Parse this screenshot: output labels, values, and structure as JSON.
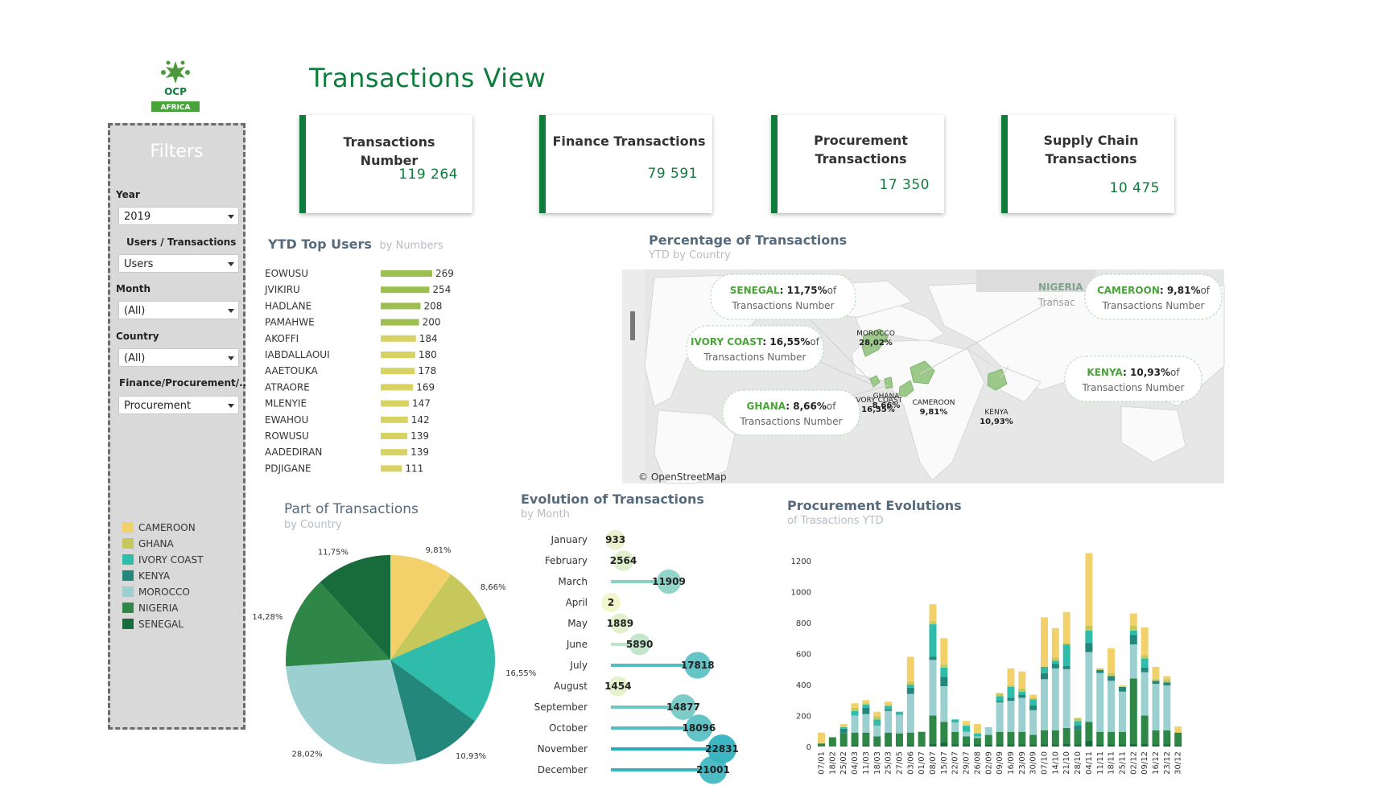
{
  "logo": {
    "text": "OCP",
    "badge": "AFRICA"
  },
  "header": {
    "title": "Transactions View"
  },
  "filters": {
    "title": "Filters",
    "year": {
      "label": "Year",
      "value": "2019"
    },
    "users_transactions": {
      "label": "Users / Transactions",
      "value": "Users"
    },
    "month": {
      "label": "Month",
      "value": "(All)"
    },
    "country": {
      "label": "Country",
      "value": "(All)"
    },
    "type": {
      "label": "Finance/Procurement/..",
      "value": "Procurement"
    }
  },
  "legend": [
    {
      "name": "CAMEROON",
      "color": "#f2d16b"
    },
    {
      "name": "GHANA",
      "color": "#c6c85c"
    },
    {
      "name": "IVORY COAST",
      "color": "#2fbcaa"
    },
    {
      "name": "KENYA",
      "color": "#23877b"
    },
    {
      "name": "MOROCCO",
      "color": "#9ccfd0"
    },
    {
      "name": "NIGERIA",
      "color": "#2e8746"
    },
    {
      "name": "SENEGAL",
      "color": "#186c3b"
    }
  ],
  "kpis": [
    {
      "title": "Transactions Number",
      "value": "119 264"
    },
    {
      "title": "Finance Transactions",
      "value": "79 591"
    },
    {
      "title": "Procurement Transactions",
      "value": "17 350"
    },
    {
      "title": "Supply Chain Transactions",
      "value": "10 475"
    }
  ],
  "top_users": {
    "title": "YTD Top Users",
    "subtitle": "by Numbers",
    "chart_data": {
      "type": "bar",
      "orientation": "horizontal",
      "categories": [
        "EOWUSU",
        "JVIKIRU",
        "HADLANE",
        "PAMAHWE",
        "AKOFFI",
        "IABDALLAOUI",
        "AAETOUKA",
        "ATRAORE",
        "MLENYIE",
        "EWAHOU",
        "ROWUSU",
        "AADEDIRAN",
        "PDJIGANE"
      ],
      "values": [
        269,
        254,
        208,
        200,
        184,
        180,
        178,
        169,
        147,
        142,
        139,
        139,
        111
      ],
      "color_range": [
        "#9cbf4f",
        "#d8d164"
      ]
    }
  },
  "map": {
    "title": "Percentage of Transactions",
    "subtitle": "YTD by Country",
    "attribution": "© OpenStreetMap",
    "points": [
      {
        "name": "MOROCCO",
        "pct": "28,02%"
      },
      {
        "name": "IVORY COAST",
        "pct": "16,55%"
      },
      {
        "name": "GHANA",
        "pct": "8,66%"
      },
      {
        "name": "CAMEROON",
        "pct": "9,81%"
      },
      {
        "name": "KENYA",
        "pct": "10,93%"
      }
    ],
    "callouts": [
      {
        "country": "SENEGAL",
        "pct": "11,75%",
        "of": "of",
        "text": "Transactions Number"
      },
      {
        "country": "IVORY COAST",
        "pct": "16,55%",
        "of": "of",
        "text": "Transactions Number"
      },
      {
        "country": "GHANA",
        "pct": "8,66%",
        "of": "of",
        "text": "Transactions Number"
      },
      {
        "country": "CAMEROON",
        "pct": "9,81%",
        "of": "of",
        "text": "Transactions Number"
      },
      {
        "country": "KENYA",
        "pct": "10,93%",
        "of": "of",
        "text": "Transactions Number"
      }
    ],
    "nigeria_partial": {
      "name": "NIGERIA",
      "text": "Transac"
    }
  },
  "part": {
    "title": "Part of Transactions",
    "subtitle": "by Country",
    "chart_data": {
      "type": "pie",
      "categories": [
        "CAMEROON",
        "GHANA",
        "IVORY COAST",
        "KENYA",
        "MOROCCO",
        "NIGERIA",
        "SENEGAL"
      ],
      "values": [
        9.81,
        8.66,
        16.55,
        10.93,
        28.02,
        14.28,
        11.75
      ],
      "labels": [
        "9,81%",
        "8,66%",
        "16,55%",
        "10,93%",
        "28,02%",
        "14,28%",
        "11,75%"
      ],
      "colors": [
        "#f2d16b",
        "#c6c85c",
        "#2fbcaa",
        "#23877b",
        "#9ccfd0",
        "#2e8746",
        "#186c3b"
      ]
    }
  },
  "evolution": {
    "title": "Evolution of Transactions",
    "subtitle": "by Month",
    "chart_data": {
      "type": "lollipop",
      "categories": [
        "January",
        "February",
        "March",
        "April",
        "May",
        "June",
        "July",
        "August",
        "September",
        "October",
        "November",
        "December"
      ],
      "values": [
        933,
        2564,
        11909,
        2,
        1889,
        5890,
        17818,
        1454,
        14877,
        18096,
        22831,
        21001
      ],
      "labels": [
        "933",
        "2564",
        "11909",
        "2",
        "1889",
        "5890",
        "17818",
        "1454",
        "14877",
        "18096",
        "22831",
        "21001"
      ]
    }
  },
  "procurement": {
    "title": "Procurement  Evolutions",
    "subtitle": "of Trasactions YTD",
    "chart_data": {
      "type": "bar",
      "stacked": true,
      "ylim": [
        0,
        1300
      ],
      "yticks": [
        0,
        200,
        400,
        600,
        800,
        1000,
        1200
      ],
      "x": [
        "07/01",
        "18/02",
        "25/02",
        "04/03",
        "11/03",
        "18/03",
        "25/03",
        "27/05",
        "03/06",
        "01/07",
        "08/07",
        "15/07",
        "22/07",
        "29/07",
        "26/08",
        "02/09",
        "09/09",
        "16/09",
        "23/09",
        "30/09",
        "07/10",
        "14/10",
        "21/10",
        "28/10",
        "04/11",
        "11/11",
        "18/11",
        "25/11",
        "02/12",
        "09/12",
        "16/12",
        "23/12",
        "30/12"
      ],
      "series": [
        {
          "name": "SENEGAL",
          "values": [
            0,
            0,
            5,
            10,
            10,
            5,
            10,
            5,
            10,
            5,
            20,
            30,
            15,
            15,
            15,
            15,
            15,
            15,
            15,
            15,
            15,
            15,
            20,
            15,
            40,
            15,
            15,
            15,
            20,
            20,
            15,
            15,
            10
          ]
        },
        {
          "name": "NIGERIA",
          "values": [
            20,
            60,
            80,
            80,
            80,
            60,
            80,
            80,
            80,
            90,
            180,
            130,
            80,
            50,
            40,
            60,
            80,
            80,
            80,
            60,
            90,
            90,
            100,
            90,
            120,
            80,
            80,
            80,
            420,
            180,
            90,
            90,
            80
          ]
        },
        {
          "name": "MOROCCO",
          "values": [
            0,
            0,
            0,
            110,
            120,
            70,
            140,
            120,
            250,
            0,
            360,
            230,
            60,
            30,
            10,
            50,
            190,
            200,
            220,
            160,
            330,
            400,
            380,
            0,
            450,
            380,
            330,
            260,
            220,
            280,
            300,
            290,
            0
          ]
        },
        {
          "name": "KENYA",
          "values": [
            0,
            0,
            30,
            0,
            40,
            0,
            10,
            0,
            40,
            0,
            20,
            60,
            0,
            0,
            0,
            0,
            10,
            20,
            20,
            30,
            40,
            30,
            20,
            30,
            60,
            20,
            30,
            30,
            60,
            30,
            20,
            20,
            0
          ]
        },
        {
          "name": "IVORY COAST",
          "values": [
            0,
            0,
            10,
            30,
            20,
            40,
            20,
            20,
            20,
            0,
            210,
            60,
            20,
            40,
            20,
            0,
            30,
            70,
            20,
            40,
            40,
            20,
            140,
            30,
            80,
            0,
            0,
            0,
            30,
            60,
            0,
            0,
            0
          ]
        },
        {
          "name": "GHANA",
          "values": [
            0,
            0,
            0,
            20,
            10,
            20,
            10,
            0,
            20,
            0,
            20,
            20,
            0,
            0,
            0,
            0,
            20,
            10,
            20,
            10,
            0,
            20,
            10,
            20,
            30,
            10,
            20,
            0,
            30,
            20,
            10,
            20,
            0
          ]
        },
        {
          "name": "CAMEROON",
          "values": [
            70,
            0,
            20,
            30,
            20,
            30,
            20,
            0,
            160,
            0,
            110,
            170,
            0,
            30,
            60,
            0,
            0,
            110,
            110,
            20,
            320,
            190,
            200,
            0,
            470,
            0,
            160,
            10,
            80,
            180,
            80,
            20,
            40
          ]
        }
      ]
    }
  }
}
